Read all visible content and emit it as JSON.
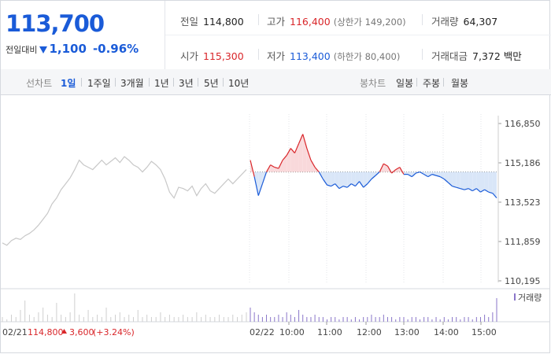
{
  "summary": {
    "price": "113,700",
    "change_label": "전일대비",
    "change_abs": "1,100",
    "change_pct": "-0.96%",
    "prev_close_label": "전일",
    "prev_close": "114,800",
    "high_label": "고가",
    "high": "116,400",
    "upper_limit": "(상한가 149,200)",
    "volume_label": "거래량",
    "volume": "64,307",
    "open_label": "시가",
    "open": "115,300",
    "low_label": "저가",
    "low": "113,400",
    "lower_limit": "(하한가 80,400)",
    "value_label": "거래대금",
    "value": "7,372 백만",
    "colors": {
      "up": "#d9262a",
      "down": "#1a5bd8"
    }
  },
  "toolbar": {
    "line_label": "선차트",
    "ranges": [
      "1일",
      "1주일",
      "3개월",
      "1년",
      "3년",
      "5년",
      "10년"
    ],
    "active_range": "1일",
    "candle_label": "봉차트",
    "candles": [
      "일봉",
      "주봉",
      "월봉"
    ]
  },
  "chart_data": {
    "type": "line",
    "y_ticks": [
      "116,850",
      "115,186",
      "113,523",
      "111,859",
      "110,195"
    ],
    "ylim": [
      110195,
      116850
    ],
    "reference_price": 114800,
    "prev_day": {
      "date": "02/21",
      "close": "114,800",
      "change": "3,600",
      "change_pct": "(+3.24%)",
      "values": [
        111800,
        111700,
        111900,
        112000,
        111950,
        112100,
        112200,
        112350,
        112550,
        112800,
        113050,
        113450,
        113700,
        114050,
        114300,
        114550,
        114900,
        115300,
        115100,
        115000,
        114900,
        115100,
        115300,
        115100,
        115250,
        115400,
        115200,
        115450,
        115300,
        115100,
        115000,
        114800,
        115000,
        115250,
        115100,
        114900,
        114500,
        113950,
        113700,
        114150,
        114100,
        114000,
        114200,
        113800,
        114100,
        114300,
        114000,
        113900,
        114100,
        114300,
        114500,
        114300,
        114500,
        114700,
        114900
      ]
    },
    "today": {
      "date": "02/22",
      "x_ticks": [
        "10:00",
        "11:00",
        "12:00",
        "13:00",
        "14:00",
        "15:00"
      ],
      "values": [
        115300,
        114600,
        113800,
        114300,
        114800,
        115100,
        115000,
        114950,
        115300,
        115500,
        115800,
        115600,
        116000,
        116400,
        115800,
        115300,
        115000,
        114800,
        114500,
        114250,
        114200,
        114300,
        114100,
        114200,
        114150,
        114300,
        114200,
        114400,
        114150,
        114300,
        114500,
        114650,
        114800,
        115150,
        115050,
        114750,
        114900,
        115000,
        114700,
        114700,
        114600,
        114750,
        114800,
        114700,
        114600,
        114700,
        114650,
        114600,
        114500,
        114350,
        114200,
        114150,
        114100,
        114050,
        114100,
        114000,
        114100,
        113950,
        114050,
        113950,
        113900,
        113700
      ]
    },
    "volume_label": "거래량",
    "volume": {
      "prev_day": [
        2,
        1,
        3,
        2,
        5,
        9,
        3,
        2,
        4,
        6,
        3,
        2,
        8,
        3,
        2,
        4,
        12,
        3,
        2,
        5,
        2,
        3,
        2,
        6,
        2,
        3,
        4,
        2,
        3,
        2,
        5,
        2,
        3,
        2,
        2,
        4,
        2,
        3,
        2,
        2,
        3,
        2,
        2,
        4,
        2,
        3,
        2,
        2,
        3,
        2,
        2,
        3,
        2,
        3,
        4
      ],
      "today": [
        6,
        4,
        3,
        2,
        3,
        2,
        2,
        3,
        2,
        4,
        3,
        2,
        5,
        3,
        2,
        2,
        3,
        2,
        2,
        1,
        2,
        2,
        1,
        2,
        2,
        1,
        2,
        1,
        2,
        2,
        3,
        2,
        2,
        3,
        2,
        2,
        1,
        2,
        2,
        1,
        2,
        2,
        1,
        2,
        2,
        1,
        2,
        1,
        2,
        1,
        2,
        2,
        1,
        2,
        2,
        1,
        2,
        2,
        3,
        2,
        4,
        10
      ]
    }
  }
}
